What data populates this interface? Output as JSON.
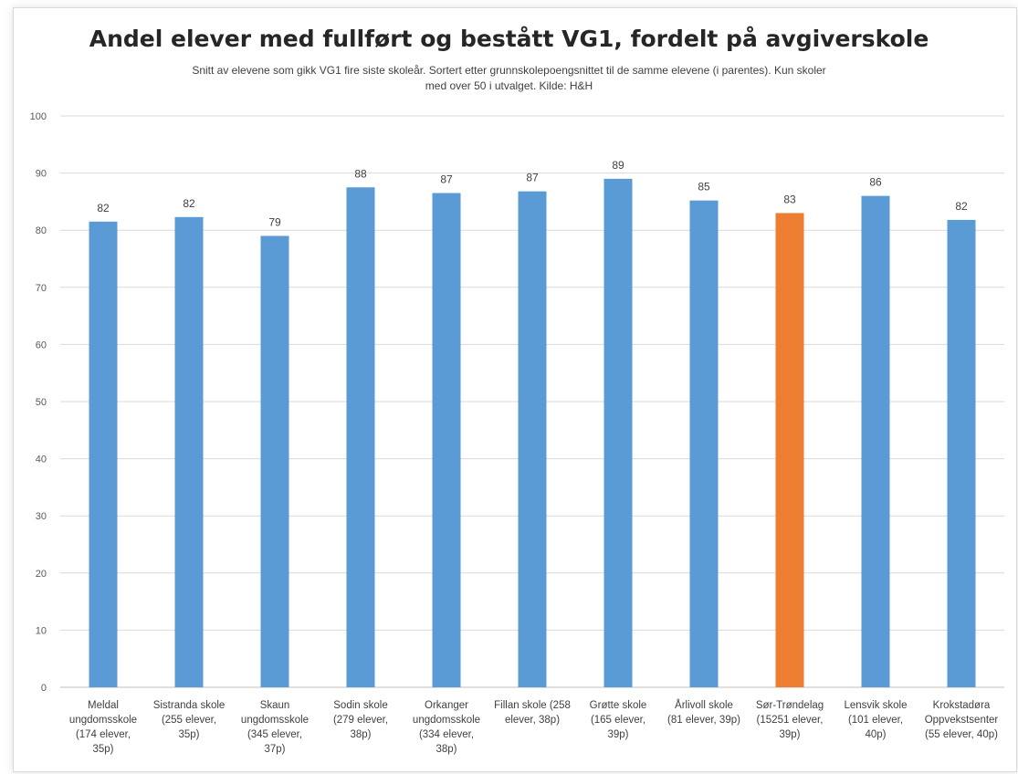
{
  "chart_data": {
    "type": "bar",
    "title": "Andel elever med fullført og bestått VG1, fordelt på avgiverskole",
    "subtitle": "Snitt av elevene som gikk VG1 fire siste skoleår. Sortert etter grunnskolepoengsnittet til de samme elevene (i parentes). Kun skoler med over 50 i utvalget. Kilde: H&H",
    "xlabel": "",
    "ylabel": "",
    "ylim": [
      0,
      100
    ],
    "yticks": [
      0,
      10,
      20,
      30,
      40,
      50,
      60,
      70,
      80,
      90,
      100
    ],
    "grid": true,
    "legend": "none",
    "categories": [
      [
        "Meldal",
        "ungdomsskole",
        "(174 elever,",
        "35p)"
      ],
      [
        "Sistranda skole",
        "(255 elever,",
        "35p)"
      ],
      [
        "Skaun",
        "ungdomsskole",
        "(345 elever,",
        "37p)"
      ],
      [
        "Sodin skole",
        "(279 elever,",
        "38p)"
      ],
      [
        "Orkanger",
        "ungdomsskole",
        "(334 elever,",
        "38p)"
      ],
      [
        "Fillan skole (258",
        "elever, 38p)"
      ],
      [
        "Grøtte skole",
        "(165 elever,",
        "39p)"
      ],
      [
        "Årlivoll skole",
        "(81 elever, 39p)"
      ],
      [
        "Sør-Trøndelag",
        "(15251 elever,",
        "39p)"
      ],
      [
        "Lensvik skole",
        "(101 elever,",
        "40p)"
      ],
      [
        "Krokstadøra",
        "Oppvekstsenter",
        "(55 elever, 40p)"
      ]
    ],
    "values": [
      81.5,
      82.3,
      79,
      87.5,
      86.5,
      86.8,
      89,
      85.2,
      83,
      86,
      81.8
    ],
    "data_labels": [
      "82",
      "82",
      "79",
      "88",
      "87",
      "87",
      "89",
      "85",
      "83",
      "86",
      "82"
    ],
    "bar_colors": [
      "#5b9bd5",
      "#5b9bd5",
      "#5b9bd5",
      "#5b9bd5",
      "#5b9bd5",
      "#5b9bd5",
      "#5b9bd5",
      "#5b9bd5",
      "#ed7d31",
      "#5b9bd5",
      "#5b9bd5"
    ]
  },
  "colors": {
    "primary_bar": "#5b9bd5",
    "highlight_bar": "#ed7d31",
    "gridline": "#d9d9d9"
  }
}
